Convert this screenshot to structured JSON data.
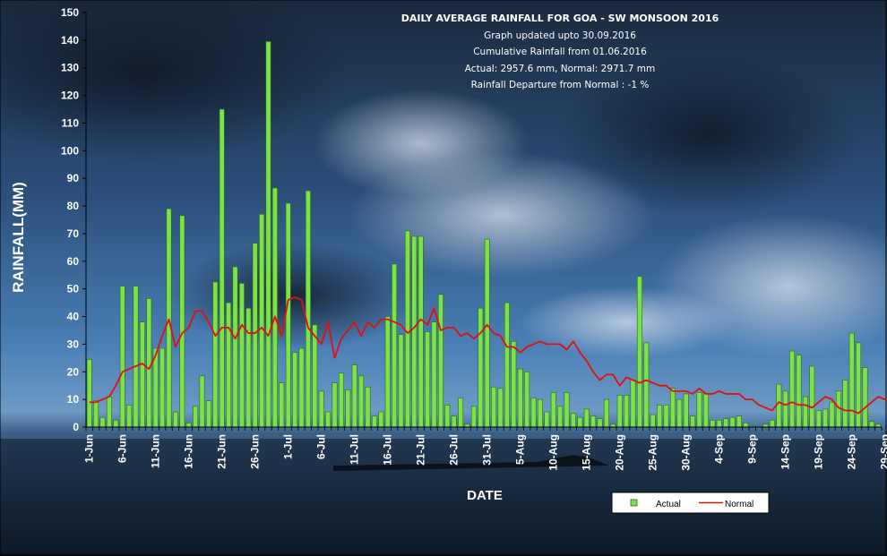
{
  "info": {
    "title": "DAILY AVERAGE  RAINFALL FOR GOA - SW MONSOON 2016",
    "updated": "Graph updated upto      30.09.2016",
    "cumulative": "Cumulative Rainfall  from 01.06.2016",
    "actual_normal": "Actual:  2957.6 mm,  Normal:  2971.7 mm",
    "departure": "Rainfall Departure from Normal   :  -1  %"
  },
  "colors": {
    "actual_fill": "#7de24a",
    "actual_stroke": "#2d6a12",
    "normal_line": "#e01010",
    "axis": "#000000",
    "grid": "#ffffff"
  },
  "chart_data": {
    "type": "bar",
    "xlabel": "DATE",
    "ylabel": "RAINFALL(MM)",
    "ylim": [
      0,
      150
    ],
    "ytick_step": 10,
    "grid": false,
    "legend_position": "bottom-right",
    "x_tick_labels": [
      "1-Jun",
      "6-Jun",
      "11-Jun",
      "16-Jun",
      "21-Jun",
      "26-Jun",
      "1-Jul",
      "6-Jul",
      "11-Jul",
      "16-Jul",
      "21-Jul",
      "26-Jul",
      "31-Jul",
      "5-Aug",
      "10-Aug",
      "15-Aug",
      "20-Aug",
      "25-Aug",
      "30-Aug",
      "4-Sep",
      "9-Sep",
      "14-Sep",
      "19-Sep",
      "24-Sep",
      "29-Sep"
    ],
    "x_tick_every": 5,
    "series": [
      {
        "name": "Actual",
        "kind": "bar",
        "values": [
          24.5,
          9.5,
          3.5,
          11,
          2.5,
          51,
          8,
          51,
          38,
          46.5,
          28.5,
          28.5,
          79,
          5.5,
          76.5,
          1.5,
          7.5,
          18.5,
          9.5,
          52.5,
          115,
          45,
          58,
          52,
          43,
          66.5,
          77,
          139.5,
          86.5,
          16,
          81,
          27,
          28.5,
          85.5,
          37,
          13,
          5.5,
          16,
          19.5,
          13.5,
          22.5,
          18.5,
          14.5,
          4,
          5.5,
          40,
          59,
          33.5,
          71,
          69,
          69,
          34.5,
          38,
          48,
          8,
          4,
          10.5,
          1,
          7.5,
          43,
          68,
          14.5,
          14,
          45,
          31,
          21,
          20,
          10.5,
          10,
          5.5,
          12.5,
          7.5,
          12.5,
          5,
          3.5,
          6.5,
          4,
          3,
          10,
          1,
          11.5,
          11.5,
          17,
          54.5,
          30.5,
          4.5,
          8,
          8,
          14,
          10,
          12,
          4,
          12.5,
          12,
          2.5,
          2.5,
          3,
          3.5,
          4,
          1.5,
          0,
          0,
          1,
          2.5,
          15.5,
          13,
          27.5,
          26,
          11,
          22,
          6,
          6.5,
          9,
          13,
          17,
          34,
          30.5,
          21.5,
          2,
          1
        ]
      },
      {
        "name": "Normal",
        "kind": "line",
        "values": [
          9,
          9,
          10,
          11,
          15,
          20,
          21,
          22,
          23,
          21,
          26,
          33,
          39,
          29,
          34,
          36,
          42,
          42,
          38,
          33,
          36,
          36,
          32,
          37,
          34,
          34,
          36,
          33,
          40,
          33,
          46,
          47,
          46,
          36,
          33,
          30,
          38,
          25,
          32,
          35,
          38,
          33,
          38,
          36,
          39,
          39,
          38,
          37,
          34,
          36,
          39,
          37,
          43,
          35,
          36,
          36,
          33,
          34,
          32,
          34,
          37,
          34,
          33,
          29,
          29,
          27,
          29,
          30,
          31,
          30,
          30,
          30,
          28,
          31,
          27,
          24,
          20,
          17,
          19,
          19,
          15,
          18,
          17,
          16,
          17,
          16,
          15,
          15,
          13,
          13,
          13,
          12,
          14,
          12,
          12,
          13,
          12,
          12,
          12,
          10,
          10,
          8,
          7,
          6,
          9,
          8,
          9,
          8,
          8,
          7,
          9,
          11,
          10,
          7,
          6,
          6,
          5,
          7,
          9,
          11,
          10,
          9
        ]
      }
    ]
  }
}
